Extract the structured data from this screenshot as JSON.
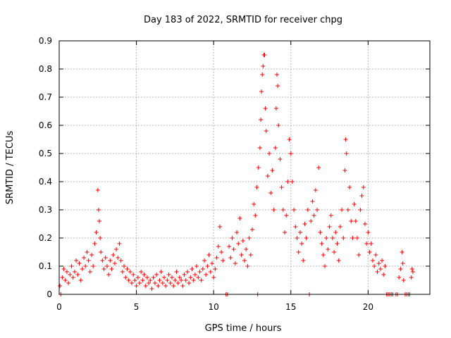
{
  "chart_data": {
    "type": "scatter",
    "title": "Day 183 of 2022, SRMTID for receiver chpg",
    "xlabel": "GPS time / hours",
    "ylabel": "SRMTID / TECUs",
    "xlim": [
      0,
      24
    ],
    "ylim": [
      0,
      0.9
    ],
    "xticks": [
      0,
      5,
      10,
      15,
      20
    ],
    "yticks": [
      0,
      0.1,
      0.2,
      0.3,
      0.4,
      0.5,
      0.6,
      0.7,
      0.8,
      0.9
    ],
    "grid": true,
    "marker": "+",
    "colors": {
      "points": "#ff0000"
    },
    "series": [
      {
        "name": "SRMTID",
        "points": [
          [
            0.05,
            0.03
          ],
          [
            0.1,
            0.0
          ],
          [
            0.2,
            0.06
          ],
          [
            0.3,
            0.09
          ],
          [
            0.4,
            0.05
          ],
          [
            0.5,
            0.08
          ],
          [
            0.6,
            0.04
          ],
          [
            0.7,
            0.07
          ],
          [
            0.8,
            0.1
          ],
          [
            0.9,
            0.06
          ],
          [
            1.0,
            0.08
          ],
          [
            1.1,
            0.12
          ],
          [
            1.2,
            0.07
          ],
          [
            1.3,
            0.11
          ],
          [
            1.4,
            0.05
          ],
          [
            1.5,
            0.09
          ],
          [
            1.6,
            0.13
          ],
          [
            1.7,
            0.1
          ],
          [
            1.8,
            0.15
          ],
          [
            1.9,
            0.12
          ],
          [
            2.0,
            0.08
          ],
          [
            2.1,
            0.14
          ],
          [
            2.2,
            0.1
          ],
          [
            2.3,
            0.18
          ],
          [
            2.4,
            0.22
          ],
          [
            2.5,
            0.37
          ],
          [
            2.55,
            0.3
          ],
          [
            2.6,
            0.26
          ],
          [
            2.65,
            0.2
          ],
          [
            2.7,
            0.15
          ],
          [
            2.8,
            0.12
          ],
          [
            2.9,
            0.09
          ],
          [
            3.0,
            0.13
          ],
          [
            3.1,
            0.1
          ],
          [
            3.2,
            0.07
          ],
          [
            3.3,
            0.12
          ],
          [
            3.4,
            0.09
          ],
          [
            3.5,
            0.14
          ],
          [
            3.6,
            0.11
          ],
          [
            3.7,
            0.16
          ],
          [
            3.8,
            0.13
          ],
          [
            3.9,
            0.18
          ],
          [
            4.0,
            0.12
          ],
          [
            4.1,
            0.08
          ],
          [
            4.2,
            0.1
          ],
          [
            4.3,
            0.06
          ],
          [
            4.4,
            0.09
          ],
          [
            4.5,
            0.05
          ],
          [
            4.6,
            0.08
          ],
          [
            4.7,
            0.04
          ],
          [
            4.8,
            0.07
          ],
          [
            4.9,
            0.05
          ],
          [
            5.0,
            0.03
          ],
          [
            5.1,
            0.06
          ],
          [
            5.2,
            0.04
          ],
          [
            5.3,
            0.08
          ],
          [
            5.4,
            0.05
          ],
          [
            5.5,
            0.07
          ],
          [
            5.6,
            0.03
          ],
          [
            5.7,
            0.06
          ],
          [
            5.8,
            0.04
          ],
          [
            5.9,
            0.05
          ],
          [
            6.0,
            0.02
          ],
          [
            6.1,
            0.06
          ],
          [
            6.2,
            0.04
          ],
          [
            6.3,
            0.07
          ],
          [
            6.4,
            0.03
          ],
          [
            6.5,
            0.05
          ],
          [
            6.6,
            0.08
          ],
          [
            6.7,
            0.04
          ],
          [
            6.8,
            0.06
          ],
          [
            6.9,
            0.03
          ],
          [
            7.0,
            0.05
          ],
          [
            7.1,
            0.07
          ],
          [
            7.2,
            0.04
          ],
          [
            7.3,
            0.06
          ],
          [
            7.4,
            0.03
          ],
          [
            7.5,
            0.05
          ],
          [
            7.6,
            0.08
          ],
          [
            7.7,
            0.04
          ],
          [
            7.8,
            0.06
          ],
          [
            7.9,
            0.05
          ],
          [
            8.0,
            0.03
          ],
          [
            8.1,
            0.07
          ],
          [
            8.2,
            0.05
          ],
          [
            8.3,
            0.08
          ],
          [
            8.4,
            0.04
          ],
          [
            8.5,
            0.06
          ],
          [
            8.6,
            0.09
          ],
          [
            8.7,
            0.05
          ],
          [
            8.8,
            0.07
          ],
          [
            8.9,
            0.1
          ],
          [
            9.0,
            0.06
          ],
          [
            9.1,
            0.08
          ],
          [
            9.2,
            0.05
          ],
          [
            9.3,
            0.09
          ],
          [
            9.4,
            0.12
          ],
          [
            9.5,
            0.07
          ],
          [
            9.6,
            0.1
          ],
          [
            9.7,
            0.14
          ],
          [
            9.8,
            0.08
          ],
          [
            9.9,
            0.11
          ],
          [
            10.0,
            0.06
          ],
          [
            10.1,
            0.09
          ],
          [
            10.2,
            0.13
          ],
          [
            10.3,
            0.17
          ],
          [
            10.4,
            0.24
          ],
          [
            10.5,
            0.15
          ],
          [
            10.6,
            0.12
          ],
          [
            10.8,
            0.0
          ],
          [
            10.9,
            0.0
          ],
          [
            11.0,
            0.17
          ],
          [
            11.1,
            0.13
          ],
          [
            11.2,
            0.2
          ],
          [
            11.3,
            0.16
          ],
          [
            11.4,
            0.11
          ],
          [
            11.5,
            0.22
          ],
          [
            11.6,
            0.18
          ],
          [
            11.7,
            0.27
          ],
          [
            11.8,
            0.14
          ],
          [
            11.9,
            0.19
          ],
          [
            12.0,
            0.12
          ],
          [
            12.1,
            0.16
          ],
          [
            12.2,
            0.1
          ],
          [
            12.3,
            0.2
          ],
          [
            12.4,
            0.14
          ],
          [
            12.5,
            0.23
          ],
          [
            12.6,
            0.32
          ],
          [
            12.7,
            0.28
          ],
          [
            12.8,
            0.38
          ],
          [
            12.85,
            0.0
          ],
          [
            12.9,
            0.45
          ],
          [
            13.0,
            0.52
          ],
          [
            13.05,
            0.62
          ],
          [
            13.1,
            0.72
          ],
          [
            13.15,
            0.78
          ],
          [
            13.2,
            0.81
          ],
          [
            13.25,
            0.85
          ],
          [
            13.3,
            0.85
          ],
          [
            13.35,
            0.66
          ],
          [
            13.4,
            0.58
          ],
          [
            13.5,
            0.42
          ],
          [
            13.6,
            0.5
          ],
          [
            13.7,
            0.36
          ],
          [
            13.8,
            0.44
          ],
          [
            13.9,
            0.3
          ],
          [
            14.0,
            0.52
          ],
          [
            14.05,
            0.66
          ],
          [
            14.1,
            0.78
          ],
          [
            14.15,
            0.74
          ],
          [
            14.2,
            0.6
          ],
          [
            14.3,
            0.48
          ],
          [
            14.4,
            0.38
          ],
          [
            14.5,
            0.3
          ],
          [
            14.6,
            0.22
          ],
          [
            14.7,
            0.28
          ],
          [
            14.8,
            0.4
          ],
          [
            14.9,
            0.55
          ],
          [
            15.0,
            0.5
          ],
          [
            15.1,
            0.4
          ],
          [
            15.2,
            0.3
          ],
          [
            15.3,
            0.24
          ],
          [
            15.4,
            0.2
          ],
          [
            15.5,
            0.15
          ],
          [
            15.6,
            0.22
          ],
          [
            15.7,
            0.18
          ],
          [
            15.8,
            0.12
          ],
          [
            15.9,
            0.25
          ],
          [
            16.0,
            0.2
          ],
          [
            16.1,
            0.3
          ],
          [
            16.2,
            0.0
          ],
          [
            16.3,
            0.26
          ],
          [
            16.4,
            0.33
          ],
          [
            16.5,
            0.28
          ],
          [
            16.6,
            0.37
          ],
          [
            16.7,
            0.3
          ],
          [
            16.8,
            0.45
          ],
          [
            16.9,
            0.22
          ],
          [
            17.0,
            0.18
          ],
          [
            17.1,
            0.14
          ],
          [
            17.2,
            0.1
          ],
          [
            17.3,
            0.2
          ],
          [
            17.4,
            0.16
          ],
          [
            17.5,
            0.24
          ],
          [
            17.6,
            0.28
          ],
          [
            17.7,
            0.2
          ],
          [
            17.8,
            0.15
          ],
          [
            17.9,
            0.22
          ],
          [
            18.0,
            0.18
          ],
          [
            18.1,
            0.12
          ],
          [
            18.2,
            0.24
          ],
          [
            18.3,
            0.3
          ],
          [
            18.4,
            0.2
          ],
          [
            18.5,
            0.44
          ],
          [
            18.55,
            0.55
          ],
          [
            18.6,
            0.5
          ],
          [
            18.7,
            0.3
          ],
          [
            18.8,
            0.38
          ],
          [
            18.9,
            0.26
          ],
          [
            19.0,
            0.2
          ],
          [
            19.1,
            0.32
          ],
          [
            19.2,
            0.26
          ],
          [
            19.3,
            0.2
          ],
          [
            19.4,
            0.14
          ],
          [
            19.5,
            0.3
          ],
          [
            19.6,
            0.35
          ],
          [
            19.7,
            0.38
          ],
          [
            19.8,
            0.25
          ],
          [
            19.9,
            0.18
          ],
          [
            20.0,
            0.22
          ],
          [
            20.1,
            0.15
          ],
          [
            20.2,
            0.18
          ],
          [
            20.3,
            0.12
          ],
          [
            20.4,
            0.1
          ],
          [
            20.5,
            0.14
          ],
          [
            20.6,
            0.08
          ],
          [
            20.7,
            0.11
          ],
          [
            20.8,
            0.09
          ],
          [
            20.9,
            0.12
          ],
          [
            21.0,
            0.07
          ],
          [
            21.1,
            0.1
          ],
          [
            21.2,
            0.0
          ],
          [
            21.3,
            0.0
          ],
          [
            21.4,
            0.0
          ],
          [
            21.5,
            0.0
          ],
          [
            21.6,
            0.0
          ],
          [
            21.8,
            0.0
          ],
          [
            21.9,
            0.0
          ],
          [
            22.0,
            0.06
          ],
          [
            22.1,
            0.09
          ],
          [
            22.2,
            0.15
          ],
          [
            22.25,
            0.11
          ],
          [
            22.3,
            0.05
          ],
          [
            22.4,
            0.0
          ],
          [
            22.5,
            0.0
          ],
          [
            22.6,
            0.0
          ],
          [
            22.7,
            0.0
          ],
          [
            22.8,
            0.06
          ],
          [
            22.85,
            0.09
          ],
          [
            22.9,
            0.08
          ]
        ]
      }
    ]
  }
}
